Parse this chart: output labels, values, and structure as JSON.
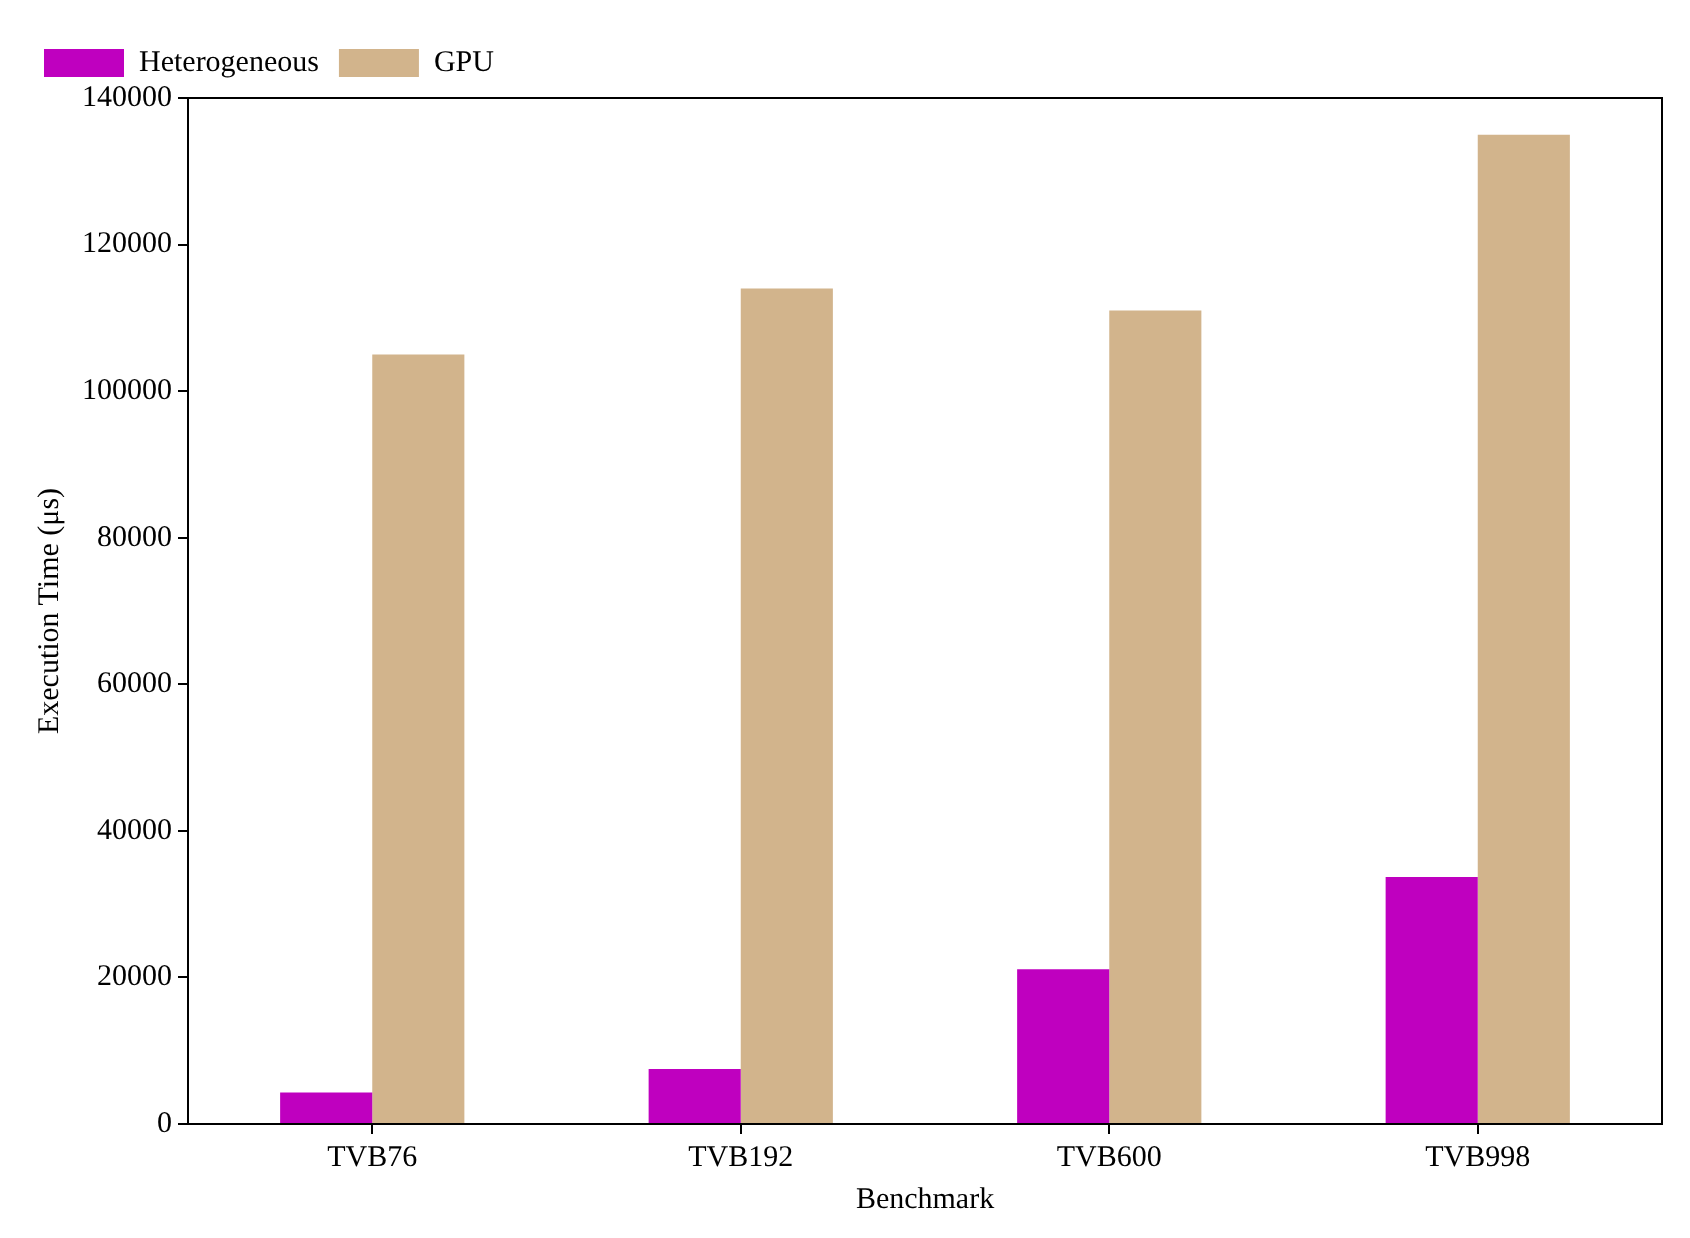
{
  "chart_data": {
    "type": "bar",
    "xlabel": "Benchmark",
    "ylabel": "Execution Time (μs)",
    "categories": [
      "TVB76",
      "TVB192",
      "TVB600",
      "TVB998"
    ],
    "series": [
      {
        "name": "Heterogeneous",
        "color": "#bf00bf",
        "values": [
          4300,
          7500,
          21100,
          33700
        ]
      },
      {
        "name": "GPU",
        "color": "#d2b48c",
        "values": [
          105000,
          114000,
          111000,
          135000
        ]
      }
    ],
    "ylim": [
      0,
      140000
    ],
    "yticks": [
      0,
      20000,
      40000,
      60000,
      80000,
      100000,
      120000,
      140000
    ],
    "grid": false,
    "legend": "top left"
  }
}
